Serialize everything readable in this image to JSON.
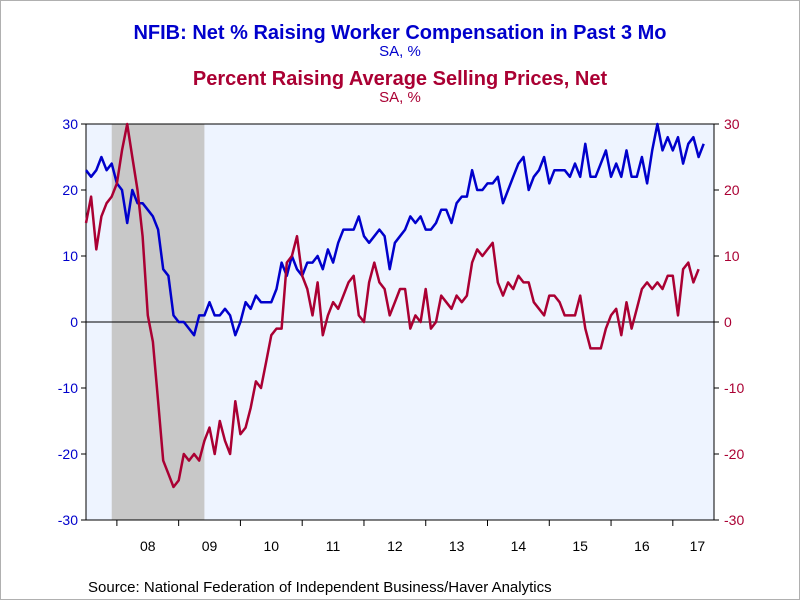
{
  "titles": {
    "title1": "NFIB: Net % Raising Worker Compensation in Past 3 Mo",
    "subtitle1": "SA, %",
    "title2": "Percent Raising Average Selling Prices, Net",
    "subtitle2": "SA, %"
  },
  "source": "Source:  National Federation of Independent Business/Haver Analytics",
  "colors": {
    "series1": "#0000cc",
    "series2": "#aa0033",
    "plot_bg": "#eef4ff",
    "recession": "#c8c8c8",
    "axis": "#000000"
  },
  "chart_data": {
    "type": "line",
    "xlabel": "",
    "ylabel": "",
    "x_range": [
      "2007-07",
      "2017-09"
    ],
    "ylim": [
      -30,
      30
    ],
    "yticks": [
      -30,
      -20,
      -10,
      0,
      10,
      20,
      30
    ],
    "ytick_labels": [
      "-30",
      "-20",
      "-10",
      "0",
      "10",
      "20",
      "30"
    ],
    "y2lim": [
      -30,
      30
    ],
    "y2ticks": [
      -30,
      -20,
      -10,
      0,
      10,
      20,
      30
    ],
    "y2tick_labels": [
      "-30",
      "-20",
      "-10",
      "0",
      "10",
      "20",
      "30"
    ],
    "x_tick_labels": [
      "08",
      "09",
      "10",
      "11",
      "12",
      "13",
      "14",
      "15",
      "16",
      "17"
    ],
    "x_tick_years": [
      2008,
      2009,
      2010,
      2011,
      2012,
      2013,
      2014,
      2015,
      2016,
      2017
    ],
    "grid": false,
    "zero_line": true,
    "recession_shading": {
      "start": "2007-12",
      "end": "2009-06"
    },
    "x_start": "2007-07",
    "series": [
      {
        "name": "NFIB: Net % Raising Worker Compensation in Past 3 Mo",
        "axis": "left",
        "values": [
          23,
          22,
          23,
          25,
          23,
          24,
          21,
          20,
          15,
          20,
          18,
          18,
          17,
          16,
          14,
          8,
          7,
          1,
          0,
          0,
          -1,
          -2,
          1,
          1,
          3,
          1,
          1,
          2,
          1,
          -2,
          0,
          3,
          2,
          4,
          3,
          3,
          3,
          5,
          9,
          7,
          10,
          8,
          7,
          9,
          9,
          10,
          8,
          11,
          9,
          12,
          14,
          14,
          14,
          16,
          13,
          12,
          13,
          14,
          13,
          8,
          12,
          13,
          14,
          16,
          15,
          16,
          14,
          14,
          15,
          17,
          17,
          15,
          18,
          19,
          19,
          23,
          20,
          20,
          21,
          21,
          22,
          18,
          20,
          22,
          24,
          25,
          20,
          22,
          23,
          25,
          21,
          23,
          23,
          23,
          22,
          24,
          22,
          27,
          22,
          22,
          24,
          26,
          22,
          24,
          22,
          26,
          22,
          22,
          25,
          21,
          26,
          30,
          26,
          28,
          26,
          28,
          24,
          27,
          28,
          25,
          27
        ]
      },
      {
        "name": "Percent Raising Average Selling Prices, Net",
        "axis": "right",
        "values": [
          15,
          19,
          11,
          16,
          18,
          19,
          21,
          26,
          30,
          25,
          20,
          13,
          1,
          -3,
          -12,
          -21,
          -23,
          -25,
          -24,
          -20,
          -21,
          -20,
          -21,
          -18,
          -16,
          -20,
          -15,
          -18,
          -20,
          -12,
          -17,
          -16,
          -13,
          -9,
          -10,
          -6,
          -2,
          -1,
          -1,
          9,
          10,
          13,
          7,
          5,
          1,
          6,
          -2,
          1,
          3,
          2,
          4,
          6,
          7,
          1,
          0,
          6,
          9,
          6,
          5,
          1,
          3,
          5,
          5,
          -1,
          1,
          0,
          5,
          -1,
          0,
          4,
          3,
          2,
          4,
          3,
          4,
          9,
          11,
          10,
          11,
          12,
          6,
          4,
          6,
          5,
          7,
          6,
          6,
          3,
          2,
          1,
          4,
          4,
          3,
          1,
          1,
          1,
          4,
          -1,
          -4,
          -4,
          -4,
          -1,
          1,
          2,
          -2,
          3,
          -1,
          2,
          5,
          6,
          5,
          6,
          5,
          7,
          7,
          1,
          8,
          9,
          6,
          8
        ]
      }
    ]
  }
}
